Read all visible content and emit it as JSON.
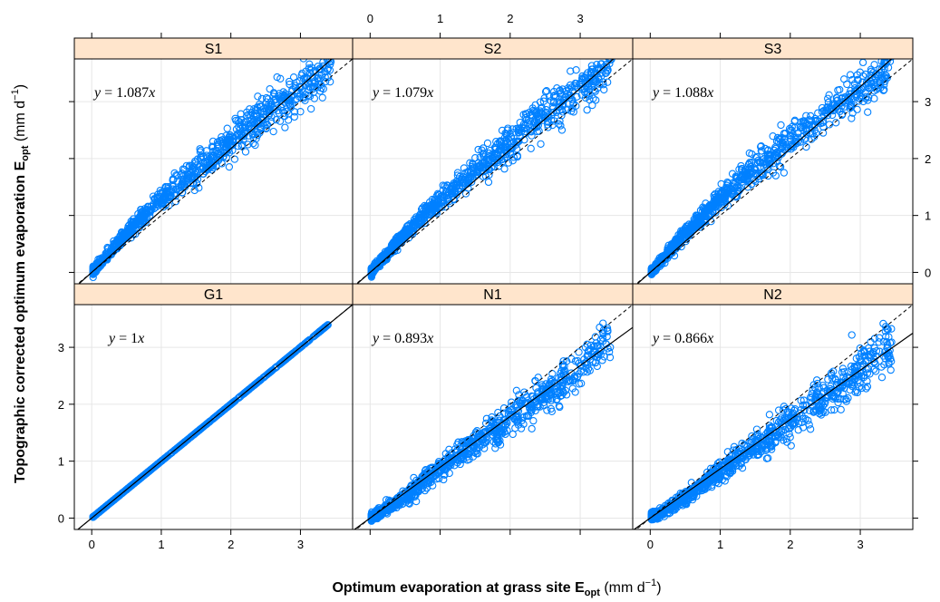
{
  "chart_data": {
    "type": "scatter",
    "layout": {
      "columns": 3,
      "rows": 2
    },
    "xlabel": {
      "main": "Optimum evaporation at grass site E",
      "subscript": "opt",
      "unit_open": " (mm d",
      "unit_exp": "−1",
      "unit_close": ")"
    },
    "ylabel": {
      "main": "Topographic corrected optimum evaporation E",
      "subscript": "opt",
      "unit_open": " (mm d",
      "unit_exp": "−1",
      "unit_close": ")"
    },
    "xlim": [
      -0.25,
      3.75
    ],
    "ylim": [
      -0.2,
      3.75
    ],
    "ticks": [
      0,
      1,
      2,
      3
    ],
    "tick_labels": [
      "0",
      "1",
      "2",
      "3"
    ],
    "grid": true,
    "colors": {
      "points": "#0080ff",
      "strip": "#ffe5cc",
      "reference_line": "#000000",
      "fit_line": "#000000"
    },
    "panels": [
      {
        "name": "S1",
        "row": 0,
        "col": 0,
        "slope": 1.087,
        "equation_prefix": "y = ",
        "equation_value": "1.087",
        "equation_suffix": "x",
        "points_sample": [
          [
            0.05,
            0.06
          ],
          [
            0.3,
            0.4
          ],
          [
            0.5,
            0.68
          ],
          [
            0.8,
            1.05
          ],
          [
            1.0,
            1.3
          ],
          [
            1.5,
            1.8
          ],
          [
            2.0,
            2.3
          ],
          [
            2.5,
            2.8
          ],
          [
            3.0,
            3.2
          ],
          [
            3.4,
            3.55
          ]
        ],
        "x_max": 3.45
      },
      {
        "name": "S2",
        "row": 0,
        "col": 1,
        "slope": 1.079,
        "equation_prefix": "y = ",
        "equation_value": "1.079",
        "equation_suffix": "x",
        "points_sample": [
          [
            0.05,
            0.06
          ],
          [
            0.3,
            0.4
          ],
          [
            0.5,
            0.67
          ],
          [
            0.8,
            1.03
          ],
          [
            1.0,
            1.28
          ],
          [
            1.5,
            1.78
          ],
          [
            2.0,
            2.28
          ],
          [
            2.5,
            2.78
          ],
          [
            3.0,
            3.18
          ],
          [
            3.4,
            3.55
          ]
        ],
        "x_max": 3.45
      },
      {
        "name": "S3",
        "row": 0,
        "col": 2,
        "slope": 1.088,
        "equation_prefix": "y = ",
        "equation_value": "1.088",
        "equation_suffix": "x",
        "points_sample": [
          [
            0.05,
            0.06
          ],
          [
            0.3,
            0.4
          ],
          [
            0.5,
            0.68
          ],
          [
            0.8,
            1.06
          ],
          [
            1.0,
            1.3
          ],
          [
            1.5,
            1.82
          ],
          [
            2.0,
            2.32
          ],
          [
            2.5,
            2.82
          ],
          [
            3.0,
            3.2
          ],
          [
            3.4,
            3.55
          ]
        ],
        "x_max": 3.45
      },
      {
        "name": "G1",
        "row": 1,
        "col": 0,
        "slope": 1.0,
        "equation_prefix": "y = ",
        "equation_value": "1",
        "equation_suffix": "x",
        "points_sample": [
          [
            0.05,
            0.05
          ],
          [
            1.0,
            1.0
          ],
          [
            2.0,
            2.0
          ],
          [
            3.0,
            3.0
          ],
          [
            3.4,
            3.4
          ]
        ],
        "x_max": 3.4
      },
      {
        "name": "N1",
        "row": 1,
        "col": 1,
        "slope": 0.893,
        "equation_prefix": "y = ",
        "equation_value": "0.893",
        "equation_suffix": "x",
        "points_sample": [
          [
            0.05,
            0.02
          ],
          [
            0.5,
            0.38
          ],
          [
            1.0,
            0.85
          ],
          [
            1.5,
            1.3
          ],
          [
            2.0,
            1.75
          ],
          [
            2.5,
            2.2
          ],
          [
            3.0,
            2.65
          ],
          [
            3.4,
            3.2
          ]
        ],
        "x_max": 3.45
      },
      {
        "name": "N2",
        "row": 1,
        "col": 2,
        "slope": 0.866,
        "equation_prefix": "y = ",
        "equation_value": "0.866",
        "equation_suffix": "x",
        "points_sample": [
          [
            0.05,
            0.02
          ],
          [
            0.5,
            0.36
          ],
          [
            1.0,
            0.82
          ],
          [
            1.5,
            1.26
          ],
          [
            2.0,
            1.7
          ],
          [
            2.5,
            2.12
          ],
          [
            3.0,
            2.55
          ],
          [
            3.4,
            3.1
          ]
        ],
        "x_max": 3.45
      }
    ]
  }
}
